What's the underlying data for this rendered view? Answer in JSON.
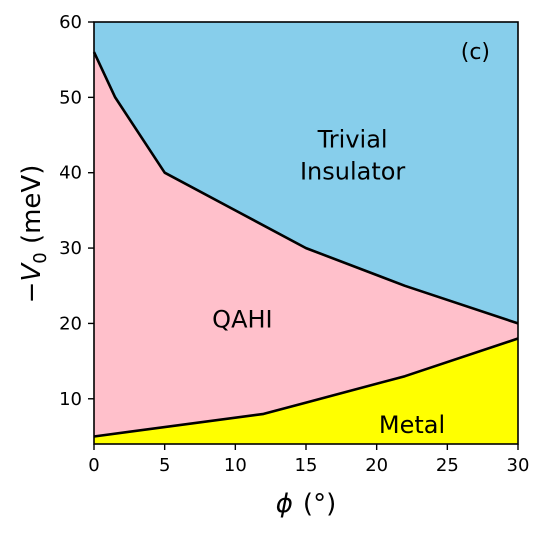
{
  "chart_data": {
    "type": "area",
    "panel_label": "(c)",
    "xlabel_symbol": "ϕ",
    "xlabel_unit": "(°)",
    "ylabel_base": "−V",
    "ylabel_sub": "0",
    "ylabel_unit": " (meV)",
    "xlim": [
      0,
      30
    ],
    "ylim": [
      4,
      60
    ],
    "xticks": [
      0,
      5,
      10,
      15,
      20,
      25,
      30
    ],
    "yticks": [
      10,
      20,
      30,
      40,
      50,
      60
    ],
    "grid": false,
    "regions": [
      {
        "name": "Trivial Insulator",
        "label_lines": [
          "Trivial",
          "Insulator"
        ],
        "color": "#87CEEB",
        "label_at": [
          18.3,
          42.3
        ]
      },
      {
        "name": "QAHI",
        "label_lines": [
          "QAHI"
        ],
        "color": "#FFC0CB",
        "label_at": [
          10.5,
          20.5
        ]
      },
      {
        "name": "Metal",
        "label_lines": [
          "Metal"
        ],
        "color": "#FFFF00",
        "label_at": [
          22.5,
          6.5
        ]
      }
    ],
    "boundaries": [
      {
        "name": "upper",
        "x": [
          0,
          1.5,
          5,
          10,
          15,
          22,
          30
        ],
        "y": [
          56,
          50,
          40,
          35,
          30,
          25,
          20
        ]
      },
      {
        "name": "lower",
        "x": [
          0,
          12,
          15,
          22,
          30
        ],
        "y": [
          5,
          8,
          9.5,
          13,
          18
        ]
      }
    ]
  }
}
